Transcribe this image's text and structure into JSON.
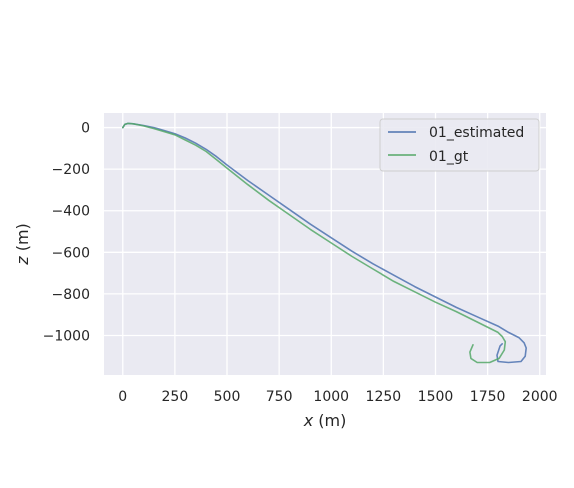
{
  "chart_data": {
    "type": "line",
    "title": "",
    "xlabel_var": "x",
    "xlabel_unit": " (m)",
    "ylabel_var": "z",
    "ylabel_unit": " (m)",
    "xlim": [
      -90,
      2030
    ],
    "ylim": [
      -1190,
      70
    ],
    "x_ticks": [
      0,
      250,
      500,
      750,
      1000,
      1250,
      1500,
      1750,
      2000
    ],
    "x_tick_labels": [
      "0",
      "250",
      "500",
      "750",
      "1000",
      "1250",
      "1500",
      "1750",
      "2000"
    ],
    "y_ticks": [
      0,
      -200,
      -400,
      -600,
      -800,
      -1000
    ],
    "y_tick_labels": [
      "0",
      "−200",
      "−400",
      "−600",
      "−800",
      "−1000"
    ],
    "grid": true,
    "legend_position": "upper-right",
    "series": [
      {
        "name": "01_estimated",
        "color": "#4c72b0",
        "points": [
          [
            0,
            0
          ],
          [
            10,
            15
          ],
          [
            25,
            20
          ],
          [
            50,
            18
          ],
          [
            100,
            10
          ],
          [
            150,
            0
          ],
          [
            200,
            -15
          ],
          [
            250,
            -30
          ],
          [
            300,
            -50
          ],
          [
            350,
            -75
          ],
          [
            400,
            -105
          ],
          [
            450,
            -140
          ],
          [
            500,
            -180
          ],
          [
            600,
            -255
          ],
          [
            700,
            -325
          ],
          [
            800,
            -395
          ],
          [
            900,
            -465
          ],
          [
            1000,
            -530
          ],
          [
            1100,
            -595
          ],
          [
            1200,
            -655
          ],
          [
            1300,
            -710
          ],
          [
            1400,
            -765
          ],
          [
            1500,
            -815
          ],
          [
            1600,
            -865
          ],
          [
            1700,
            -910
          ],
          [
            1800,
            -955
          ],
          [
            1850,
            -985
          ],
          [
            1900,
            -1010
          ],
          [
            1925,
            -1035
          ],
          [
            1935,
            -1060
          ],
          [
            1930,
            -1100
          ],
          [
            1910,
            -1125
          ],
          [
            1850,
            -1130
          ],
          [
            1800,
            -1125
          ],
          [
            1795,
            -1095
          ],
          [
            1810,
            -1050
          ],
          [
            1820,
            -1040
          ]
        ]
      },
      {
        "name": "01_gt",
        "color": "#55a868",
        "points": [
          [
            0,
            0
          ],
          [
            10,
            15
          ],
          [
            25,
            20
          ],
          [
            50,
            18
          ],
          [
            100,
            8
          ],
          [
            150,
            -5
          ],
          [
            200,
            -20
          ],
          [
            250,
            -35
          ],
          [
            300,
            -60
          ],
          [
            350,
            -85
          ],
          [
            400,
            -115
          ],
          [
            450,
            -155
          ],
          [
            500,
            -195
          ],
          [
            600,
            -275
          ],
          [
            700,
            -350
          ],
          [
            800,
            -420
          ],
          [
            900,
            -490
          ],
          [
            1000,
            -555
          ],
          [
            1100,
            -620
          ],
          [
            1200,
            -680
          ],
          [
            1300,
            -740
          ],
          [
            1400,
            -790
          ],
          [
            1500,
            -840
          ],
          [
            1600,
            -885
          ],
          [
            1700,
            -935
          ],
          [
            1800,
            -985
          ],
          [
            1820,
            -1005
          ],
          [
            1835,
            -1030
          ],
          [
            1830,
            -1070
          ],
          [
            1805,
            -1110
          ],
          [
            1760,
            -1130
          ],
          [
            1700,
            -1130
          ],
          [
            1670,
            -1110
          ],
          [
            1665,
            -1080
          ],
          [
            1680,
            -1045
          ]
        ]
      }
    ]
  }
}
